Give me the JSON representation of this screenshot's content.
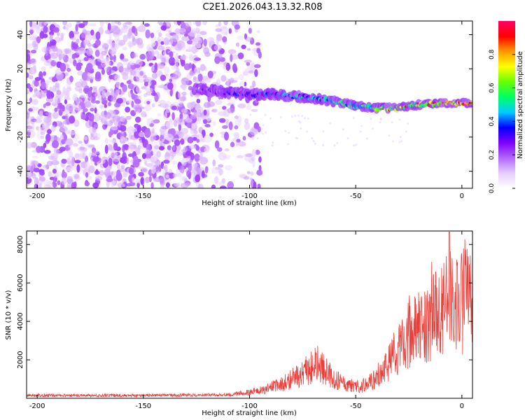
{
  "title": "C2E1.2026.043.13.32.R08",
  "colors": {
    "signal": "#e8403a",
    "frame": "#000000"
  },
  "chart_data": [
    {
      "type": "heatmap",
      "name": "spectrogram",
      "xlabel": "Height of straight line (km)",
      "ylabel": "Frequency (Hz)",
      "xlim": [
        -205,
        5
      ],
      "ylim": [
        -50,
        48
      ],
      "xticks": [
        -200,
        -150,
        -100,
        -50,
        0
      ],
      "yticks": [
        -40,
        -20,
        0,
        20,
        40
      ],
      "ridge": [
        {
          "x": -125,
          "y": 8
        },
        {
          "x": -110,
          "y": 6
        },
        {
          "x": -100,
          "y": 5
        },
        {
          "x": -90,
          "y": 5
        },
        {
          "x": -80,
          "y": 4
        },
        {
          "x": -70,
          "y": 3
        },
        {
          "x": -60,
          "y": 1
        },
        {
          "x": -50,
          "y": -2
        },
        {
          "x": -40,
          "y": -3
        },
        {
          "x": -30,
          "y": -3
        },
        {
          "x": -20,
          "y": -1
        },
        {
          "x": -10,
          "y": 0
        },
        {
          "x": 0,
          "y": 0
        },
        {
          "x": 5,
          "y": 0
        }
      ],
      "colorbar": {
        "label": "Normalized spectral amplitude",
        "range": [
          0.0,
          1.0
        ],
        "ticks": [
          "0.0",
          "0.2",
          "0.4",
          "0.6",
          "0.8"
        ],
        "stops": [
          "#ffffff",
          "#e6ccff",
          "#b266ff",
          "#7f00ff",
          "#0000ff",
          "#00ccff",
          "#00ff66",
          "#66ff00",
          "#ffff00",
          "#ff9900",
          "#ff0000",
          "#ff0066"
        ]
      }
    },
    {
      "type": "line",
      "name": "snr",
      "xlabel": "Height of straight line (km)",
      "ylabel": "SNR (10 * v/v)",
      "xlim": [
        -205,
        5
      ],
      "ylim": [
        0,
        8700
      ],
      "xticks": [
        -200,
        -150,
        -100,
        -50,
        0
      ],
      "yticks": [
        2000,
        4000,
        6000,
        8000
      ],
      "envelope": [
        {
          "x": -205,
          "y": 150
        },
        {
          "x": -150,
          "y": 150
        },
        {
          "x": -110,
          "y": 180
        },
        {
          "x": -100,
          "y": 300
        },
        {
          "x": -90,
          "y": 550
        },
        {
          "x": -82,
          "y": 900
        },
        {
          "x": -75,
          "y": 1300
        },
        {
          "x": -68,
          "y": 1800
        },
        {
          "x": -62,
          "y": 1200
        },
        {
          "x": -55,
          "y": 700
        },
        {
          "x": -48,
          "y": 600
        },
        {
          "x": -42,
          "y": 900
        },
        {
          "x": -36,
          "y": 1600
        },
        {
          "x": -30,
          "y": 2600
        },
        {
          "x": -24,
          "y": 3400
        },
        {
          "x": -18,
          "y": 3800
        },
        {
          "x": -12,
          "y": 4300
        },
        {
          "x": -6,
          "y": 5000
        },
        {
          "x": 0,
          "y": 4900
        },
        {
          "x": 5,
          "y": 5300
        }
      ],
      "peak": {
        "x": -6,
        "y": 8650
      }
    }
  ]
}
